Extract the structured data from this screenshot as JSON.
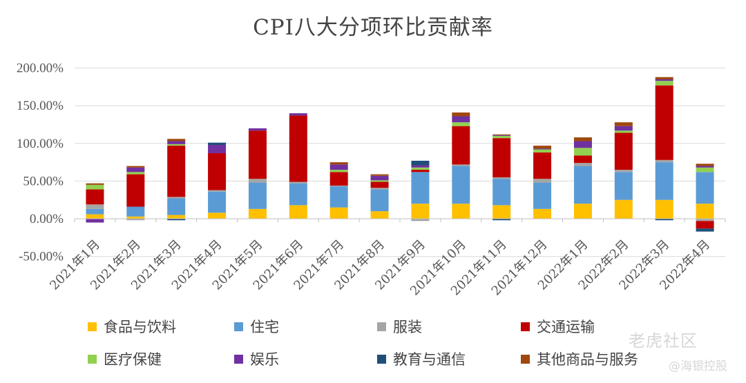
{
  "chart_data": {
    "type": "bar",
    "stacked": true,
    "title": "CPI八大分项环比贡献率",
    "xlabel": "",
    "ylabel": "",
    "ylim": [
      -50,
      200
    ],
    "yticks": [
      -50,
      0,
      50,
      100,
      150,
      200
    ],
    "ytick_labels": [
      "-50.00%",
      "0.00%",
      "50.00%",
      "100.00%",
      "150.00%",
      "200.00%"
    ],
    "grid": true,
    "legend_position": "bottom",
    "categories": [
      "2021年1月",
      "2021年2月",
      "2021年3月",
      "2021年4月",
      "2021年5月",
      "2021年6月",
      "2021年7月",
      "2021年8月",
      "2021年9月",
      "2021年10月",
      "2021年11月",
      "2021年12月",
      "2022年1月",
      "2022年2月",
      "2022年3月",
      "2022年4月"
    ],
    "series": [
      {
        "name": "食品与饮料",
        "color": "#FFC000",
        "values": [
          6,
          3,
          5,
          8,
          13,
          18,
          15,
          10,
          20,
          20,
          18,
          13,
          20,
          25,
          25,
          20
        ]
      },
      {
        "name": "住宅",
        "color": "#5B9BD5",
        "values": [
          7,
          13,
          22,
          28,
          35,
          29,
          28,
          29,
          42,
          50,
          35,
          35,
          50,
          37,
          50,
          42
        ]
      },
      {
        "name": "服装",
        "color": "#A5A5A5",
        "values": [
          6,
          -2,
          2,
          2,
          5,
          2,
          1,
          2,
          -3,
          2,
          2,
          5,
          4,
          3,
          3,
          -3
        ]
      },
      {
        "name": "交通运输",
        "color": "#C00000",
        "values": [
          20,
          43,
          68,
          49,
          64,
          88,
          18,
          8,
          3,
          51,
          52,
          35,
          10,
          49,
          99,
          -10
        ]
      },
      {
        "name": "医疗保健",
        "color": "#92D050",
        "values": [
          6,
          3,
          2,
          0,
          0,
          0,
          3,
          2,
          3,
          5,
          3,
          4,
          10,
          3,
          6,
          6
        ]
      },
      {
        "name": "娱乐",
        "color": "#7030A0",
        "values": [
          -5,
          6,
          4,
          11,
          3,
          3,
          7,
          6,
          3,
          8,
          1,
          1,
          9,
          6,
          2,
          2
        ]
      },
      {
        "name": "教育与通信",
        "color": "#1F4E79",
        "values": [
          0,
          0,
          -2,
          3,
          0,
          0,
          0,
          0,
          6,
          0,
          -2,
          0,
          0,
          0,
          -2,
          -4
        ]
      },
      {
        "name": "其他商品与服务",
        "color": "#9E480E",
        "values": [
          2,
          2,
          3,
          0,
          0,
          0,
          3,
          2,
          0,
          5,
          1,
          4,
          5,
          5,
          3,
          3
        ]
      }
    ]
  },
  "watermark": {
    "brand": "老虎社区",
    "handle": "@海银控股"
  }
}
